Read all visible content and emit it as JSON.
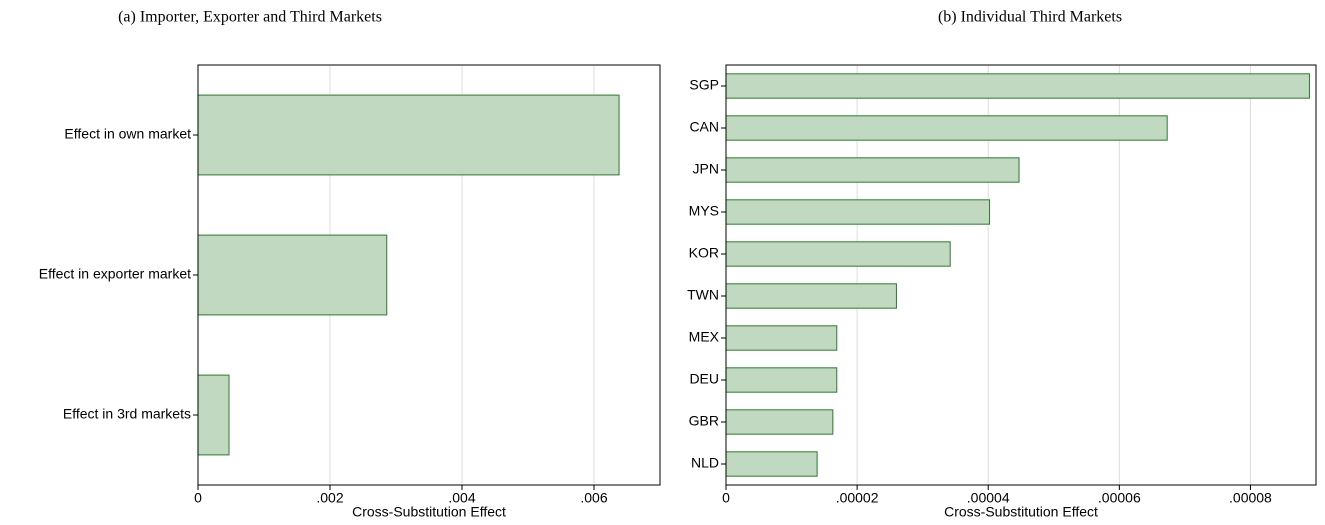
{
  "chart_data": [
    {
      "type": "bar",
      "orientation": "horizontal",
      "title": "(a) Importer, Exporter and Third Markets",
      "categories": [
        "Effect in own market",
        "Effect in exporter market",
        "Effect in 3rd markets"
      ],
      "values": [
        0.00638,
        0.00286,
        0.00047
      ],
      "color": "#c1d9c1",
      "edge_color": "#2a7a2a",
      "x_label": "Cross-Substitution Effect",
      "xlim": [
        0,
        0.007
      ],
      "xticks": [
        0,
        {
          "value": 0.002,
          "label": ".002"
        },
        {
          "value": 0.004,
          "label": ".004"
        },
        {
          "value": 0.006,
          "label": ".006"
        }
      ],
      "grid": true
    },
    {
      "type": "bar",
      "orientation": "horizontal",
      "title": "(b) Individual Third Markets",
      "categories": [
        "SGP",
        "CAN",
        "JPN",
        "MYS",
        "KOR",
        "TWN",
        "MEX",
        "DEU",
        "GBR",
        "NLD"
      ],
      "values": [
        8.9e-05,
        6.73e-05,
        4.47e-05,
        4.02e-05,
        3.42e-05,
        2.6e-05,
        1.69e-05,
        1.69e-05,
        1.63e-05,
        1.39e-05
      ],
      "color": "#c1d9c1",
      "edge_color": "#2a7a2a",
      "x_label": "Cross-Substitution Effect",
      "xlim": [
        0,
        9e-05
      ],
      "xticks": [
        0,
        {
          "value": 2e-05,
          "label": ".00002"
        },
        {
          "value": 4e-05,
          "label": ".00004"
        },
        {
          "value": 6e-05,
          "label": ".00006"
        },
        {
          "value": 8e-05,
          "label": ".00008"
        }
      ],
      "grid": true
    }
  ]
}
